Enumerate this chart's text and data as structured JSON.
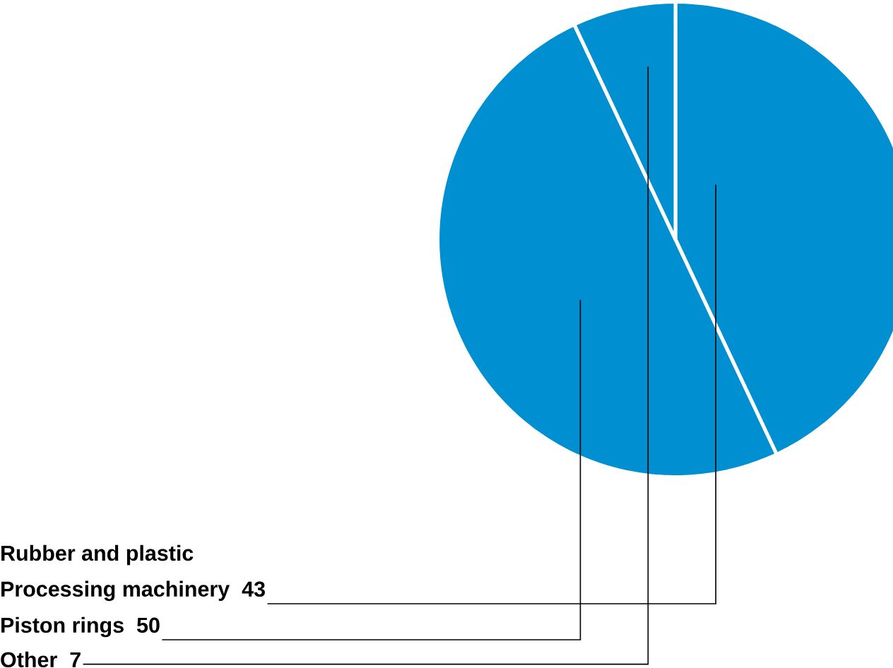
{
  "chart_data": {
    "type": "pie",
    "categories": [
      "Rubber and plastic Processing machinery",
      "Piston rings",
      "Other"
    ],
    "values": [
      43,
      50,
      7
    ],
    "colors": [
      "#008fd0",
      "#008fd0",
      "#008fd0"
    ],
    "data_labels": true
  }
}
